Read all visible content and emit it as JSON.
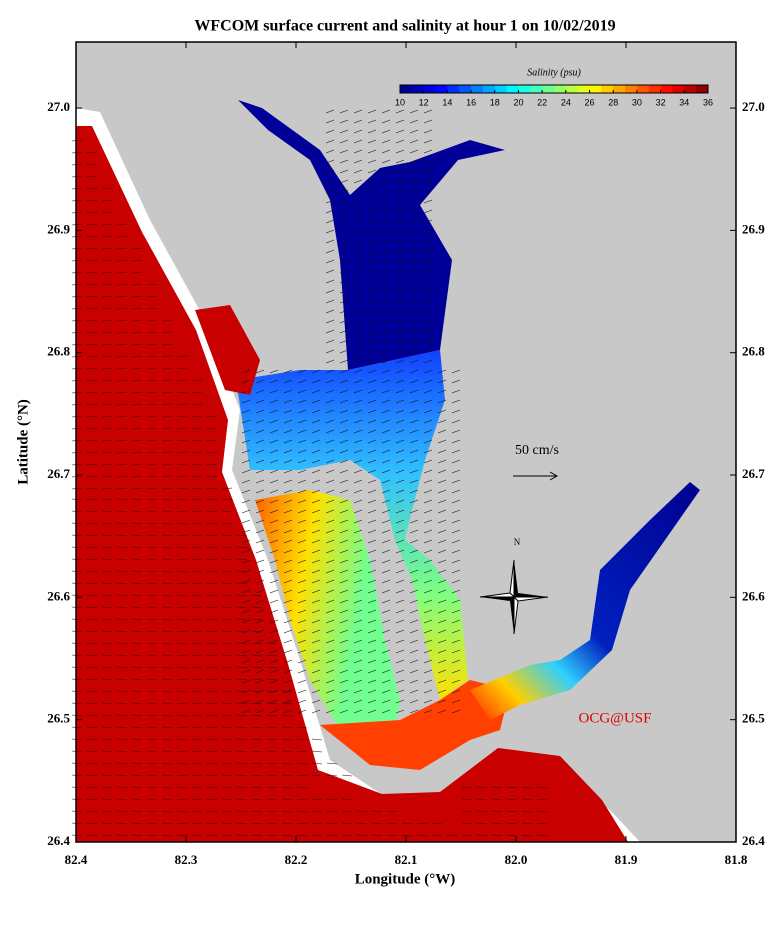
{
  "chart_data": {
    "type": "map",
    "title": "WFCOM surface current and salinity at hour  1 on 10/02/2019",
    "x_label": "Longitude (°W)",
    "y_label": "Latitude (°N)",
    "xlim": [
      82.4,
      81.8
    ],
    "ylim": [
      26.4,
      27.054
    ],
    "xticks": [
      82.4,
      82.3,
      82.2,
      82.1,
      {
        "value": 82,
        "label": "82.0"
      },
      81.9,
      81.8
    ],
    "yticks": [
      26.4,
      26.5,
      26.6,
      26.7,
      26.8,
      26.9,
      {
        "value": 27,
        "label": "27.0"
      }
    ],
    "colorbar": {
      "label": "Salinity (psu)",
      "range": [
        10,
        36
      ],
      "ticks": [
        10,
        12,
        14,
        16,
        18,
        20,
        22,
        24,
        26,
        28,
        30,
        32,
        34,
        36
      ]
    },
    "scale_label": "50 cm/s",
    "north_label": "N",
    "credit": "OCG@USF"
  }
}
